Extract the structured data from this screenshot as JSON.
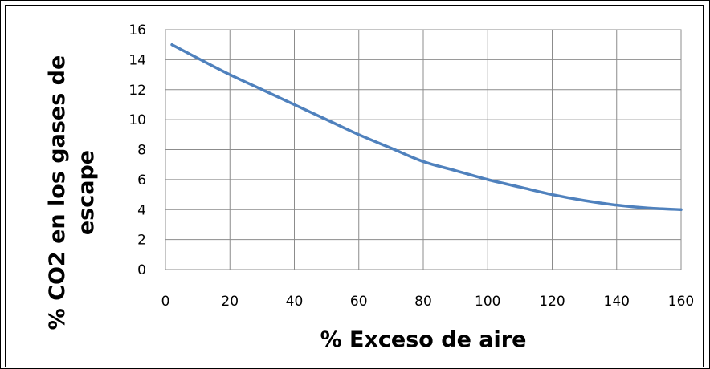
{
  "chart_data": {
    "type": "line",
    "title": "",
    "xlabel": "%  Exceso de aire",
    "ylabel_lines": [
      "% CO2 en los gases de",
      "escape"
    ],
    "xlim": [
      0,
      160
    ],
    "ylim": [
      0,
      16
    ],
    "x_ticks": [
      0,
      20,
      40,
      60,
      80,
      100,
      120,
      140,
      160
    ],
    "y_ticks": [
      0,
      2,
      4,
      6,
      8,
      10,
      12,
      14,
      16
    ],
    "x_tick_labels": [
      "0",
      "20",
      "40",
      "60",
      "80",
      "100",
      "120",
      "140",
      "160"
    ],
    "y_tick_labels": [
      "0",
      "2",
      "4",
      "6",
      "8",
      "10",
      "12",
      "14",
      "16"
    ],
    "grid": true,
    "legend": "none",
    "series": [
      {
        "color": "#4f81bd",
        "x": [
          2,
          10,
          20,
          30,
          40,
          50,
          60,
          70,
          80,
          90,
          100,
          110,
          120,
          130,
          140,
          150,
          160
        ],
        "y": [
          15.0,
          14.1,
          13.0,
          12.0,
          11.0,
          10.0,
          9.0,
          8.1,
          7.2,
          6.6,
          6.0,
          5.5,
          5.0,
          4.6,
          4.3,
          4.1,
          4.0
        ]
      }
    ]
  }
}
